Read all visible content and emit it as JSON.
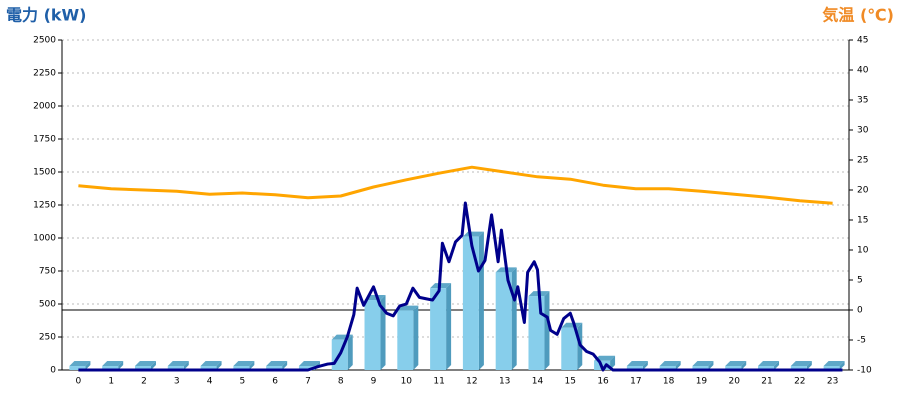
{
  "chart_data": {
    "type": "combo",
    "y_title": "電力 (kW)",
    "y2_title": "気温 (℃)",
    "categories": [
      0,
      1,
      2,
      3,
      4,
      5,
      6,
      7,
      8,
      9,
      10,
      11,
      12,
      13,
      14,
      15,
      16,
      17,
      18,
      19,
      20,
      21,
      22,
      23
    ],
    "xlim": [
      -0.5,
      23.5
    ],
    "ylim": [
      0,
      2500
    ],
    "yticks": [
      0,
      250,
      500,
      750,
      1000,
      1250,
      1500,
      1750,
      2000,
      2250,
      2500
    ],
    "y2lim": [
      -10,
      45
    ],
    "y2ticks": [
      -10,
      -5,
      0,
      5,
      10,
      15,
      20,
      25,
      30,
      35,
      40,
      45
    ],
    "grid": true,
    "y2_zero_line": true,
    "series": [
      {
        "type": "bar",
        "color": "#87ceeb",
        "values": [
          30,
          30,
          30,
          30,
          30,
          30,
          30,
          30,
          230,
          530,
          450,
          620,
          1010,
          740,
          560,
          320,
          70,
          30,
          30,
          30,
          30,
          30,
          30,
          30
        ]
      },
      {
        "type": "line",
        "axis": "y2",
        "color": "#ffa500",
        "values": [
          20.7,
          20.2,
          20,
          19.8,
          19.3,
          19.5,
          19.2,
          18.7,
          19,
          20.5,
          21.7,
          22.8,
          23.8,
          23,
          22.2,
          21.8,
          20.8,
          20.2,
          20.2,
          19.8,
          19.3,
          18.8,
          18.2,
          17.8
        ]
      },
      {
        "type": "line",
        "color": "#00008b",
        "x": [
          0,
          7,
          7.3,
          7.6,
          7.8,
          8,
          8.2,
          8.4,
          8.5,
          8.7,
          9,
          9.2,
          9.4,
          9.6,
          9.8,
          10,
          10.2,
          10.4,
          10.6,
          10.8,
          11,
          11.1,
          11.3,
          11.5,
          11.7,
          11.8,
          12,
          12.2,
          12.4,
          12.6,
          12.8,
          12.9,
          13.1,
          13.3,
          13.4,
          13.6,
          13.7,
          13.9,
          14,
          14.1,
          14.3,
          14.4,
          14.6,
          14.8,
          15,
          15.1,
          15.3,
          15.5,
          15.7,
          15.9,
          16,
          16.1,
          16.3,
          23.3
        ],
        "values": [
          0,
          0,
          25,
          45,
          50,
          130,
          250,
          420,
          620,
          490,
          630,
          490,
          430,
          410,
          485,
          500,
          620,
          550,
          540,
          530,
          600,
          960,
          820,
          970,
          1020,
          1265,
          940,
          750,
          830,
          1175,
          820,
          1060,
          680,
          530,
          630,
          360,
          740,
          820,
          760,
          430,
          400,
          300,
          270,
          390,
          430,
          360,
          190,
          140,
          120,
          60,
          0,
          40,
          0,
          0
        ]
      }
    ]
  }
}
